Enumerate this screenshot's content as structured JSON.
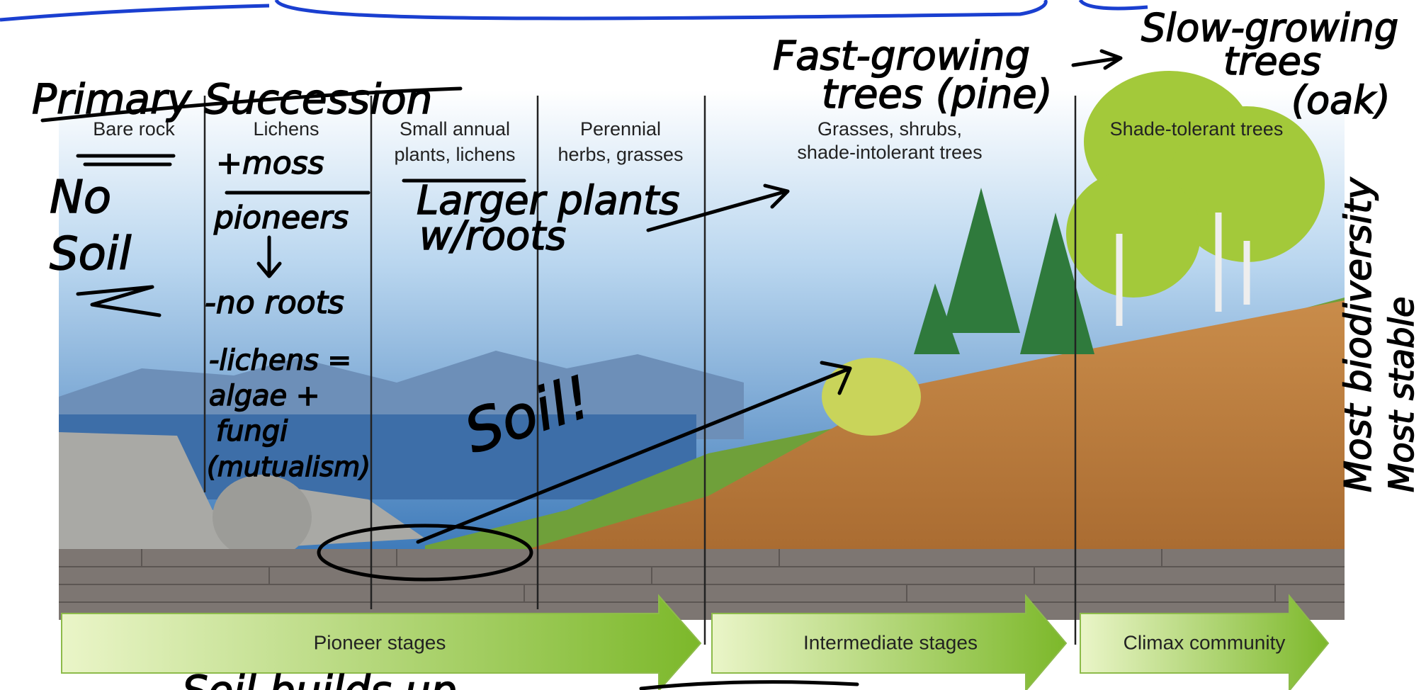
{
  "header": {
    "title": "Primary Succession"
  },
  "stages": [
    {
      "label": [
        "Bare rock"
      ]
    },
    {
      "label": [
        "Lichens"
      ]
    },
    {
      "label": [
        "Small annual",
        "plants, lichens"
      ]
    },
    {
      "label": [
        "Perennial",
        "herbs, grasses"
      ]
    },
    {
      "label": [
        "Grasses, shrubs,",
        "shade-intolerant trees"
      ]
    },
    {
      "label": [
        "Shade-tolerant trees"
      ]
    }
  ],
  "phases": [
    "Pioneer stages",
    "Intermediate stages",
    "Climax community"
  ],
  "annotations": {
    "no_soil": [
      "No",
      "Soil"
    ],
    "moss": "+moss",
    "pioneers": "pioneers",
    "no_roots": "-no roots",
    "lichens": [
      "-lichens =",
      "algae +",
      "fungi",
      "(mutualism)"
    ],
    "larger_plants": [
      "Larger plants",
      "w/roots"
    ],
    "soil": "Soil!",
    "fast_growing": [
      "Fast-growing",
      "trees (pine)"
    ],
    "slow_growing": [
      "Slow-growing",
      "trees",
      "(oak)"
    ],
    "biodiversity": "Most biodiversity",
    "stable": "Most stable",
    "soil_builds": "Soil builds up"
  }
}
